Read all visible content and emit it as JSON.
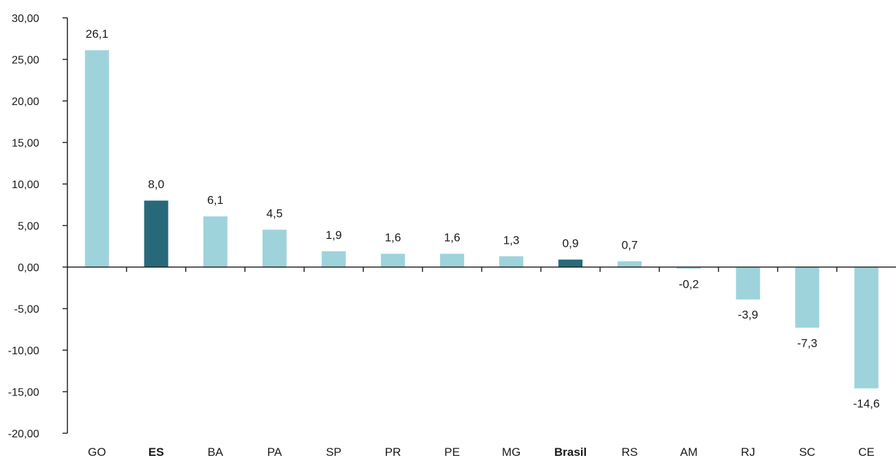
{
  "chart_data": {
    "type": "bar",
    "title": "",
    "xlabel": "",
    "ylabel": "",
    "ylim": [
      -20,
      30
    ],
    "y_ticks": [
      30,
      25,
      20,
      15,
      10,
      5,
      0,
      -5,
      -10,
      -15,
      -20
    ],
    "y_tick_labels": [
      "30,00",
      "25,00",
      "20,00",
      "15,00",
      "10,00",
      "5,00",
      "0,00",
      "-5,00",
      "-10,00",
      "-15,00",
      "-20,00"
    ],
    "categories": [
      "GO",
      "ES",
      "BA",
      "PA",
      "SP",
      "PR",
      "PE",
      "MG",
      "Brasil",
      "RS",
      "AM",
      "RJ",
      "SC",
      "CE"
    ],
    "values": [
      26.1,
      8.0,
      6.1,
      4.5,
      1.9,
      1.6,
      1.6,
      1.3,
      0.9,
      0.7,
      -0.2,
      -3.9,
      -7.3,
      -14.6
    ],
    "data_labels": [
      "26,1",
      "8,0",
      "6,1",
      "4,5",
      "1,9",
      "1,6",
      "1,6",
      "1,3",
      "0,9",
      "0,7",
      "-0,2",
      "-3,9",
      "-7,3",
      "-14,6"
    ],
    "highlighted": [
      "ES",
      "Brasil"
    ],
    "colors": {
      "default": "#9ed3dc",
      "highlight": "#27697a",
      "axis": "#222222"
    },
    "grid": false,
    "legend": "none"
  }
}
